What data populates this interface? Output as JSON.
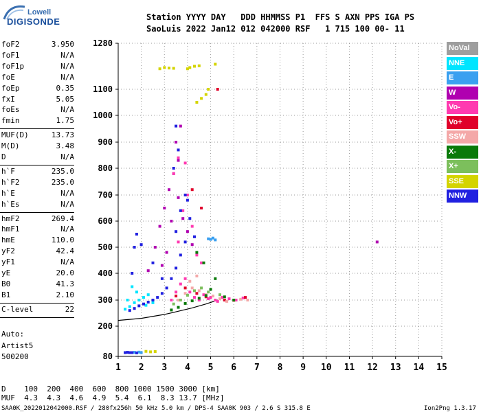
{
  "logo": {
    "line1": "Lowell",
    "line2": "DIGISONDE"
  },
  "header": {
    "line1": "Station YYYY DAY   DDD HHMMSS P1  FFS S AXN PPS IGA PS",
    "line2": "SaoLuis 2022 Jan12 012 042000 RSF   1 715 100 00- 11"
  },
  "params_groups": [
    [
      {
        "name": "foF2",
        "value": "3.950"
      },
      {
        "name": "foF1",
        "value": "N/A"
      },
      {
        "name": "foF1p",
        "value": "N/A"
      },
      {
        "name": "foE",
        "value": "N/A"
      },
      {
        "name": "foEp",
        "value": "0.35"
      },
      {
        "name": "fxI",
        "value": "5.05"
      },
      {
        "name": "foEs",
        "value": "N/A"
      },
      {
        "name": "fmin",
        "value": "1.75"
      }
    ],
    [
      {
        "name": "MUF(D)",
        "value": "13.73"
      },
      {
        "name": "M(D)",
        "value": "3.48"
      },
      {
        "name": "D",
        "value": "N/A"
      }
    ],
    [
      {
        "name": "h`F",
        "value": "235.0"
      },
      {
        "name": "h`F2",
        "value": "235.0"
      },
      {
        "name": "h`E",
        "value": "N/A"
      },
      {
        "name": "h`Es",
        "value": "N/A"
      }
    ],
    [
      {
        "name": "hmF2",
        "value": "269.4"
      },
      {
        "name": "hmF1",
        "value": "N/A"
      },
      {
        "name": "hmE",
        "value": "110.0"
      },
      {
        "name": "yF2",
        "value": "42.4"
      },
      {
        "name": "yF1",
        "value": "N/A"
      },
      {
        "name": "yE",
        "value": "20.0"
      },
      {
        "name": "B0",
        "value": "41.3"
      },
      {
        "name": "B1",
        "value": "2.10"
      }
    ],
    [
      {
        "name": "C-level",
        "value": "22"
      }
    ]
  ],
  "autoscale": {
    "line1": "Auto:",
    "line2": "Artist5",
    "line3": "500200"
  },
  "legend": [
    {
      "label": "NoVal",
      "color": "#9e9e9e"
    },
    {
      "label": "NNE",
      "color": "#00e5ff"
    },
    {
      "label": "E",
      "color": "#3aa0f0"
    },
    {
      "label": "W",
      "color": "#b000b0"
    },
    {
      "label": "Vo-",
      "color": "#ff3ab0"
    },
    {
      "label": "Vo+",
      "color": "#e0002a"
    },
    {
      "label": "SSW",
      "color": "#f4a8a8"
    },
    {
      "label": "X-",
      "color": "#0a7a0a"
    },
    {
      "label": "X+",
      "color": "#7cbf5c"
    },
    {
      "label": "SSE",
      "color": "#d4d400"
    },
    {
      "label": "NNW",
      "color": "#2020e0"
    }
  ],
  "bottom": {
    "d_row": "D    100  200  400  600  800 1000 1500 3000 [km]",
    "muf_row": "MUF  4.3  4.3  4.6  4.9  5.4  6.1  8.3 13.7 [MHz]"
  },
  "footer": {
    "left": "SAA0K_2022012042000.RSF / 280fx256h 50 kHz 5.0 km / DPS-4 SAA0K 903 / 2.6 S 315.8 E",
    "right": "Ion2Png 1.3.17"
  },
  "chart_data": {
    "type": "scatter",
    "title": "",
    "xlabel": "",
    "ylabel": "",
    "xlim": [
      1,
      15
    ],
    "ylim": [
      80,
      1280
    ],
    "x_ticks": [
      1,
      2,
      3,
      4,
      5,
      6,
      7,
      8,
      9,
      10,
      11,
      12,
      13,
      14,
      15
    ],
    "y_ticks": [
      80,
      200,
      300,
      400,
      500,
      600,
      700,
      800,
      900,
      1000,
      1100,
      1280
    ],
    "y_tick_labels": [
      "80",
      "200",
      "300",
      "400",
      "500",
      "600",
      "700",
      "800",
      "900",
      "1000",
      "1100",
      "1280"
    ],
    "grid": true,
    "legend_position": "right",
    "trace_line": [
      [
        1.0,
        222
      ],
      [
        2.0,
        230
      ],
      [
        3.0,
        245
      ],
      [
        3.5,
        255
      ],
      [
        4.2,
        270
      ],
      [
        4.8,
        285
      ],
      [
        5.3,
        300
      ]
    ],
    "series": [
      {
        "name": "NNE",
        "color": "#00e5ff",
        "points": [
          [
            1.3,
            265
          ],
          [
            1.5,
            275
          ],
          [
            1.7,
            290
          ],
          [
            1.9,
            300
          ],
          [
            2.1,
            310
          ],
          [
            2.3,
            320
          ],
          [
            1.4,
            300
          ],
          [
            1.6,
            350
          ],
          [
            2.2,
            280
          ],
          [
            2.5,
            290
          ],
          [
            1.8,
            330
          ]
        ]
      },
      {
        "name": "E",
        "color": "#3aa0f0",
        "points": [
          [
            5.0,
            530
          ],
          [
            5.1,
            535
          ],
          [
            5.2,
            528
          ],
          [
            4.9,
            532
          ],
          [
            1.3,
            95
          ],
          [
            1.5,
            95
          ],
          [
            1.7,
            96
          ],
          [
            1.9,
            97
          ],
          [
            2.0,
            95
          ]
        ]
      },
      {
        "name": "W",
        "color": "#b000b0",
        "points": [
          [
            2.3,
            410
          ],
          [
            2.6,
            500
          ],
          [
            2.8,
            580
          ],
          [
            3.0,
            650
          ],
          [
            3.2,
            720
          ],
          [
            3.4,
            780
          ],
          [
            3.6,
            830
          ],
          [
            3.5,
            900
          ],
          [
            3.7,
            960
          ],
          [
            3.3,
            600
          ],
          [
            3.1,
            480
          ],
          [
            2.9,
            430
          ],
          [
            3.8,
            610
          ],
          [
            4.0,
            560
          ],
          [
            4.2,
            510
          ],
          [
            3.6,
            690
          ],
          [
            12.2,
            520
          ]
        ]
      },
      {
        "name": "Vo-",
        "color": "#ff3ab0",
        "points": [
          [
            3.3,
            300
          ],
          [
            3.5,
            330
          ],
          [
            3.7,
            360
          ],
          [
            3.9,
            380
          ],
          [
            4.1,
            330
          ],
          [
            4.3,
            310
          ],
          [
            4.5,
            300
          ],
          [
            4.7,
            320
          ],
          [
            4.9,
            305
          ],
          [
            5.2,
            300
          ],
          [
            5.5,
            310
          ],
          [
            5.8,
            305
          ],
          [
            6.1,
            300
          ],
          [
            3.6,
            520
          ],
          [
            3.8,
            640
          ],
          [
            4.0,
            700
          ],
          [
            4.2,
            580
          ],
          [
            4.4,
            470
          ],
          [
            4.6,
            440
          ],
          [
            3.4,
            780
          ],
          [
            3.6,
            840
          ],
          [
            3.9,
            820
          ],
          [
            5.0,
            310
          ],
          [
            5.3,
            295
          ],
          [
            6.4,
            308
          ]
        ]
      },
      {
        "name": "Vo+",
        "color": "#e0002a",
        "points": [
          [
            3.5,
            315
          ],
          [
            3.9,
            345
          ],
          [
            4.4,
            325
          ],
          [
            4.8,
            312
          ],
          [
            5.6,
            300
          ],
          [
            6.5,
            310
          ],
          [
            5.3,
            1100
          ],
          [
            4.2,
            720
          ],
          [
            4.6,
            650
          ]
        ]
      },
      {
        "name": "SSW",
        "color": "#f4a8a8",
        "points": [
          [
            3.6,
            300
          ],
          [
            3.9,
            325
          ],
          [
            4.2,
            345
          ],
          [
            4.5,
            335
          ],
          [
            4.8,
            320
          ],
          [
            5.1,
            315
          ],
          [
            5.4,
            305
          ],
          [
            5.7,
            295
          ],
          [
            6.0,
            298
          ],
          [
            6.3,
            303
          ],
          [
            6.6,
            300
          ],
          [
            4.1,
            370
          ],
          [
            4.4,
            390
          ]
        ]
      },
      {
        "name": "X-",
        "color": "#0a7a0a",
        "points": [
          [
            3.3,
            262
          ],
          [
            3.6,
            272
          ],
          [
            3.9,
            287
          ],
          [
            4.2,
            297
          ],
          [
            4.5,
            307
          ],
          [
            4.8,
            317
          ],
          [
            5.0,
            340
          ],
          [
            5.2,
            380
          ],
          [
            4.7,
            440
          ],
          [
            4.4,
            480
          ],
          [
            5.6,
            312
          ],
          [
            6.0,
            300
          ]
        ]
      },
      {
        "name": "X+",
        "color": "#7cbf5c",
        "points": [
          [
            3.4,
            285
          ],
          [
            3.7,
            300
          ],
          [
            4.0,
            318
          ],
          [
            4.3,
            335
          ],
          [
            4.6,
            345
          ],
          [
            4.9,
            330
          ],
          [
            5.4,
            320
          ]
        ]
      },
      {
        "name": "SSE",
        "color": "#d4d400",
        "points": [
          [
            2.8,
            1180
          ],
          [
            3.0,
            1185
          ],
          [
            3.2,
            1183
          ],
          [
            3.4,
            1182
          ],
          [
            4.1,
            1185
          ],
          [
            4.3,
            1190
          ],
          [
            4.5,
            1192
          ],
          [
            4.0,
            1180
          ],
          [
            5.2,
            1198
          ],
          [
            4.4,
            1050
          ],
          [
            4.6,
            1065
          ],
          [
            4.8,
            1080
          ],
          [
            4.9,
            1100
          ],
          [
            2.2,
            100
          ],
          [
            2.4,
            98
          ],
          [
            2.6,
            99
          ]
        ]
      },
      {
        "name": "NNW",
        "color": "#2020e0",
        "points": [
          [
            1.3,
            95
          ],
          [
            1.4,
            96
          ],
          [
            1.5,
            95
          ],
          [
            1.6,
            95
          ],
          [
            1.8,
            94
          ],
          [
            1.5,
            260
          ],
          [
            1.7,
            268
          ],
          [
            1.9,
            278
          ],
          [
            2.1,
            285
          ],
          [
            2.3,
            292
          ],
          [
            2.5,
            300
          ],
          [
            2.7,
            310
          ],
          [
            2.9,
            325
          ],
          [
            3.1,
            345
          ],
          [
            3.3,
            380
          ],
          [
            3.5,
            420
          ],
          [
            3.7,
            470
          ],
          [
            3.9,
            520
          ],
          [
            3.5,
            560
          ],
          [
            3.7,
            640
          ],
          [
            3.9,
            700
          ],
          [
            3.4,
            800
          ],
          [
            3.6,
            870
          ],
          [
            3.5,
            960
          ],
          [
            2.5,
            440
          ],
          [
            2.0,
            510
          ],
          [
            1.7,
            500
          ],
          [
            2.9,
            380
          ],
          [
            4.1,
            610
          ],
          [
            4.3,
            540
          ],
          [
            4.0,
            680
          ],
          [
            1.8,
            550
          ],
          [
            1.6,
            400
          ]
        ]
      }
    ]
  }
}
